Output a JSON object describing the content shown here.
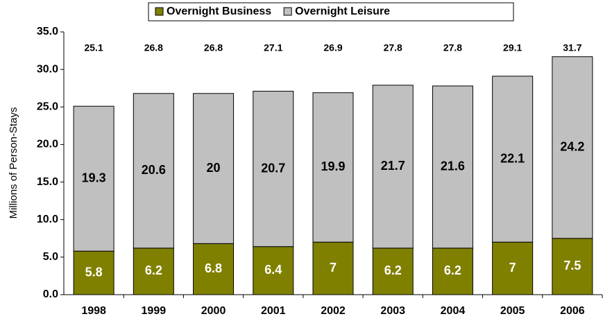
{
  "chart_data": {
    "type": "stacked_bar",
    "y_label": "Millions of Person-Stays",
    "categories": [
      "1998",
      "1999",
      "2000",
      "2001",
      "2002",
      "2003",
      "2004",
      "2005",
      "2006"
    ],
    "series": [
      {
        "name": "Overnight Business",
        "color": "#808000",
        "values": [
          5.8,
          6.2,
          6.8,
          6.4,
          7.0,
          6.2,
          6.2,
          7.0,
          7.5
        ]
      },
      {
        "name": "Overnight Leisure",
        "color": "#c0c0c0",
        "values": [
          19.3,
          20.6,
          20.0,
          20.7,
          19.9,
          21.7,
          21.6,
          22.1,
          24.2
        ]
      }
    ],
    "totals": [
      25.1,
      26.8,
      26.8,
      27.1,
      26.9,
      27.8,
      27.8,
      29.1,
      31.7
    ],
    "ylim": [
      0,
      35
    ],
    "yticks": [
      {
        "value": 0,
        "label": "0.0"
      },
      {
        "value": 5,
        "label": "5.0"
      },
      {
        "value": 10,
        "label": "10.0"
      },
      {
        "value": 15,
        "label": "15.0"
      },
      {
        "value": 20,
        "label": "20.0"
      },
      {
        "value": 25,
        "label": "25.0"
      },
      {
        "value": 30,
        "label": "30.0"
      },
      {
        "value": 35,
        "label": "35.0"
      }
    ],
    "legend": "top"
  }
}
